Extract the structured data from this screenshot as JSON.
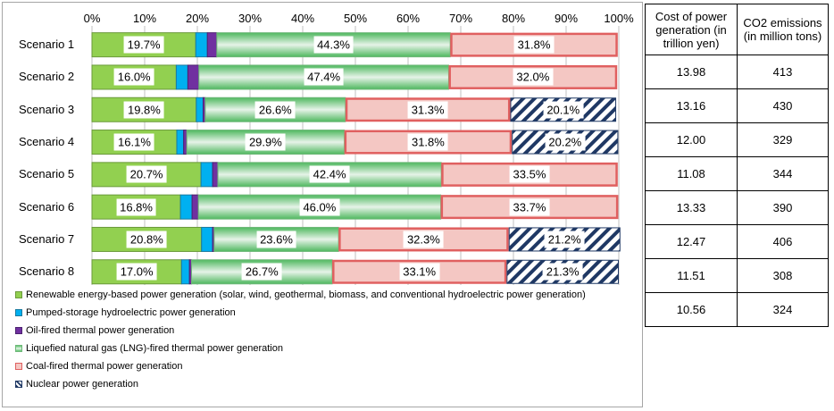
{
  "chart_data": {
    "type": "bar",
    "orientation": "horizontal",
    "stacked": true,
    "categories": [
      "Scenario 1",
      "Scenario 2",
      "Scenario 3",
      "Scenario 4",
      "Scenario 5",
      "Scenario 6",
      "Scenario 7",
      "Scenario 8"
    ],
    "x_ticks": [
      "0%",
      "10%",
      "20%",
      "30%",
      "40%",
      "50%",
      "60%",
      "70%",
      "80%",
      "90%",
      "100%"
    ],
    "xlim": [
      0,
      100
    ],
    "grid": true,
    "legend_position": "bottom",
    "series": [
      {
        "name": "Renewable energy-based power generation (solar, wind, geothermal, biomass, and conventional hydroelectric power generation)",
        "color": "#92d050",
        "values": [
          19.7,
          16.0,
          19.8,
          16.1,
          20.7,
          16.8,
          20.8,
          17.0
        ],
        "labels": [
          "19.7%",
          "16.0%",
          "19.8%",
          "16.1%",
          "20.7%",
          "16.8%",
          "20.8%",
          "17.0%"
        ]
      },
      {
        "name": "Pumped-storage hydroelectric power generation",
        "color": "#00b0f0",
        "values": [
          2.2,
          2.2,
          1.3,
          1.3,
          2.2,
          2.2,
          2.1,
          1.5
        ],
        "labels": []
      },
      {
        "name": "Oil-fired thermal power generation",
        "color": "#7030a0",
        "values": [
          1.8,
          2.1,
          0.4,
          0.6,
          1.0,
          1.2,
          0.3,
          0.4
        ],
        "labels": []
      },
      {
        "name": "Liquefied natural gas (LNG)-fired thermal power generation",
        "color": "#5ec46e",
        "values": [
          44.3,
          47.4,
          26.6,
          29.9,
          42.4,
          46.0,
          23.6,
          26.7
        ],
        "labels": [
          "44.3%",
          "47.4%",
          "26.6%",
          "29.9%",
          "42.4%",
          "46.0%",
          "23.6%",
          "26.7%"
        ]
      },
      {
        "name": "Coal-fired thermal power generation",
        "color": "#f4c7c3",
        "values": [
          31.8,
          32.0,
          31.3,
          31.8,
          33.5,
          33.7,
          32.3,
          33.1
        ],
        "labels": [
          "31.8%",
          "32.0%",
          "31.3%",
          "31.8%",
          "33.5%",
          "33.7%",
          "32.3%",
          "33.1%"
        ]
      },
      {
        "name": "Nuclear power generation",
        "color": "#1f3864",
        "values": [
          0,
          0,
          20.1,
          20.2,
          0,
          0,
          21.2,
          21.3
        ],
        "labels": [
          "",
          "",
          "20.1%",
          "20.2%",
          "",
          "",
          "21.2%",
          "21.3%"
        ]
      }
    ]
  },
  "side_table": {
    "headers": [
      "Cost of power generation (in trillion yen)",
      "CO2 emissions (in million tons)"
    ],
    "rows": [
      [
        "13.98",
        "413"
      ],
      [
        "13.16",
        "430"
      ],
      [
        "12.00",
        "329"
      ],
      [
        "11.08",
        "344"
      ],
      [
        "13.33",
        "390"
      ],
      [
        "12.47",
        "406"
      ],
      [
        "11.51",
        "308"
      ],
      [
        "10.56",
        "324"
      ]
    ]
  }
}
